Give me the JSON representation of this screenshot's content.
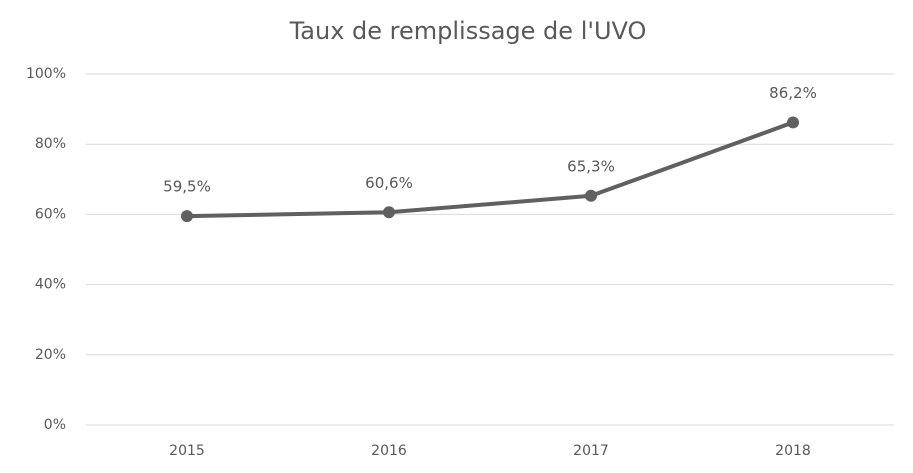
{
  "chart_data": {
    "type": "line",
    "title": "Taux de remplissage de l'UVO",
    "categories": [
      "2015",
      "2016",
      "2017",
      "2018"
    ],
    "series": [
      {
        "name": null,
        "color": "#606060",
        "values": [
          59.5,
          60.6,
          65.3,
          86.2
        ],
        "value_labels": [
          "59,5%",
          "60,6%",
          "65,3%",
          "86,2%"
        ]
      }
    ],
    "ylim": [
      0,
      100
    ],
    "yticks": [
      {
        "value": 0,
        "label": "0%"
      },
      {
        "value": 20,
        "label": "20%"
      },
      {
        "value": 40,
        "label": "40%"
      },
      {
        "value": 60,
        "label": "60%"
      },
      {
        "value": 80,
        "label": "80%"
      },
      {
        "value": 100,
        "label": "100%"
      }
    ],
    "grid": true
  }
}
